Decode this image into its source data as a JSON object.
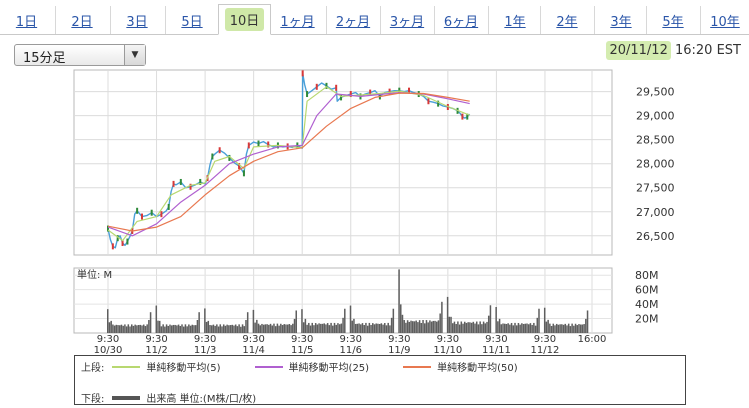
{
  "tabs": [
    {
      "label": "1日",
      "active": false
    },
    {
      "label": "2日",
      "active": false
    },
    {
      "label": "3日",
      "active": false
    },
    {
      "label": "5日",
      "active": false
    },
    {
      "label": "10日",
      "active": true
    },
    {
      "label": "1ヶ月",
      "active": false
    },
    {
      "label": "2ヶ月",
      "active": false
    },
    {
      "label": "3ヶ月",
      "active": false
    },
    {
      "label": "6ヶ月",
      "active": false
    },
    {
      "label": "1年",
      "active": false
    },
    {
      "label": "2年",
      "active": false
    },
    {
      "label": "3年",
      "active": false
    },
    {
      "label": "5年",
      "active": false
    },
    {
      "label": "10年",
      "active": false
    }
  ],
  "interval": {
    "selected": "15分足"
  },
  "timestamp": {
    "date": "20/11/12",
    "time": "16:20 EST"
  },
  "legend": {
    "upper_label": "上段:",
    "lower_label": "下段:",
    "items": [
      {
        "label": "単純移動平均(5)",
        "color": "#b8d870"
      },
      {
        "label": "単純移動平均(25)",
        "color": "#b060d0"
      },
      {
        "label": "単純移動平均(50)",
        "color": "#e87850"
      }
    ],
    "volume_label": "出来高 単位:(M株/口/枚)",
    "volume_color": "#555555"
  },
  "chart_data": [
    {
      "type": "line",
      "x_labels": [
        "9:30\n10/30",
        "9:30\n11/2",
        "9:30\n11/3",
        "9:30\n11/4",
        "9:30\n11/5",
        "9:30\n11/6",
        "9:30\n11/9",
        "9:30\n11/10",
        "9:30\n11/11",
        "9:30\n11/12",
        "16:00"
      ],
      "ylim": [
        26100,
        29950
      ],
      "yticks": [
        26500,
        27000,
        27500,
        28000,
        28500,
        29000,
        29500
      ],
      "ytick_labels": [
        "26,500",
        "27,000",
        "27,500",
        "28,000",
        "28,500",
        "29,000",
        "29,500"
      ],
      "grid": true,
      "series": [
        {
          "name": "price",
          "color": "#4a9fd8",
          "points": [
            [
              0.0,
              26650
            ],
            [
              0.05,
              26420
            ],
            [
              0.1,
              26280
            ],
            [
              0.15,
              26250
            ],
            [
              0.2,
              26450
            ],
            [
              0.25,
              26500
            ],
            [
              0.3,
              26350
            ],
            [
              0.35,
              26300
            ],
            [
              0.4,
              26380
            ],
            [
              0.45,
              26480
            ],
            [
              0.5,
              26600
            ],
            [
              0.55,
              26950
            ],
            [
              0.6,
              27020
            ],
            [
              0.65,
              26960
            ],
            [
              0.7,
              26900
            ],
            [
              0.8,
              26920
            ],
            [
              0.9,
              26980
            ],
            [
              1.0,
              26900
            ],
            [
              1.1,
              26950
            ],
            [
              1.2,
              27020
            ],
            [
              1.25,
              27100
            ],
            [
              1.3,
              27420
            ],
            [
              1.35,
              27580
            ],
            [
              1.4,
              27560
            ],
            [
              1.5,
              27620
            ],
            [
              1.6,
              27500
            ],
            [
              1.7,
              27520
            ],
            [
              1.8,
              27560
            ],
            [
              1.9,
              27620
            ],
            [
              2.0,
              27580
            ],
            [
              2.05,
              27700
            ],
            [
              2.1,
              27980
            ],
            [
              2.15,
              28150
            ],
            [
              2.2,
              28200
            ],
            [
              2.3,
              28280
            ],
            [
              2.4,
              28220
            ],
            [
              2.5,
              28120
            ],
            [
              2.6,
              28020
            ],
            [
              2.7,
              27950
            ],
            [
              2.75,
              27880
            ],
            [
              2.8,
              27800
            ],
            [
              2.85,
              28200
            ],
            [
              2.9,
              28380
            ],
            [
              3.0,
              28450
            ],
            [
              3.1,
              28420
            ],
            [
              3.2,
              28460
            ],
            [
              3.3,
              28400
            ],
            [
              3.4,
              28350
            ],
            [
              3.5,
              28380
            ],
            [
              3.6,
              28350
            ],
            [
              3.7,
              28360
            ],
            [
              3.8,
              28340
            ],
            [
              3.9,
              28380
            ],
            [
              4.0,
              28320
            ],
            [
              4.01,
              29880
            ],
            [
              4.05,
              29650
            ],
            [
              4.1,
              29450
            ],
            [
              4.2,
              29520
            ],
            [
              4.3,
              29600
            ],
            [
              4.4,
              29680
            ],
            [
              4.5,
              29620
            ],
            [
              4.6,
              29550
            ],
            [
              4.7,
              29580
            ],
            [
              4.72,
              29300
            ],
            [
              4.8,
              29380
            ],
            [
              4.9,
              29420
            ],
            [
              5.0,
              29450
            ],
            [
              5.1,
              29480
            ],
            [
              5.2,
              29400
            ],
            [
              5.3,
              29450
            ],
            [
              5.4,
              29480
            ],
            [
              5.5,
              29520
            ],
            [
              5.6,
              29400
            ],
            [
              5.7,
              29480
            ],
            [
              5.8,
              29500
            ],
            [
              5.9,
              29520
            ],
            [
              6.0,
              29520
            ],
            [
              6.1,
              29500
            ],
            [
              6.2,
              29520
            ],
            [
              6.3,
              29480
            ],
            [
              6.4,
              29450
            ],
            [
              6.5,
              29400
            ],
            [
              6.6,
              29300
            ],
            [
              6.7,
              29280
            ],
            [
              6.8,
              29250
            ],
            [
              6.9,
              29200
            ],
            [
              7.0,
              29180
            ],
            [
              7.1,
              29150
            ],
            [
              7.2,
              29100
            ],
            [
              7.25,
              29050
            ],
            [
              7.3,
              28980
            ],
            [
              7.35,
              28950
            ],
            [
              7.4,
              28980
            ],
            [
              7.45,
              29030
            ]
          ]
        },
        {
          "name": "単純移動平均(5)",
          "color": "#b8d870",
          "points": [
            [
              0.0,
              26620
            ],
            [
              0.3,
              26400
            ],
            [
              0.6,
              26800
            ],
            [
              1.0,
              26900
            ],
            [
              1.3,
              27350
            ],
            [
              1.7,
              27550
            ],
            [
              2.0,
              27600
            ],
            [
              2.2,
              28050
            ],
            [
              2.5,
              28150
            ],
            [
              2.8,
              27900
            ],
            [
              3.0,
              28350
            ],
            [
              3.5,
              28380
            ],
            [
              4.0,
              28330
            ],
            [
              4.1,
              29300
            ],
            [
              4.5,
              29600
            ],
            [
              4.8,
              29400
            ],
            [
              5.2,
              29430
            ],
            [
              5.6,
              29460
            ],
            [
              6.0,
              29510
            ],
            [
              6.5,
              29420
            ],
            [
              7.0,
              29190
            ],
            [
              7.45,
              29010
            ]
          ]
        },
        {
          "name": "単純移動平均(25)",
          "color": "#b060d0",
          "points": [
            [
              0.0,
              26680
            ],
            [
              0.5,
              26500
            ],
            [
              1.0,
              26750
            ],
            [
              1.5,
              27200
            ],
            [
              2.0,
              27550
            ],
            [
              2.5,
              28000
            ],
            [
              3.0,
              28200
            ],
            [
              3.5,
              28350
            ],
            [
              4.0,
              28380
            ],
            [
              4.3,
              29000
            ],
            [
              4.7,
              29450
            ],
            [
              5.2,
              29400
            ],
            [
              5.6,
              29440
            ],
            [
              6.0,
              29480
            ],
            [
              6.5,
              29450
            ],
            [
              7.0,
              29350
            ],
            [
              7.45,
              29250
            ]
          ]
        },
        {
          "name": "単純移動平均(50)",
          "color": "#e87850",
          "points": [
            [
              0.0,
              26700
            ],
            [
              0.5,
              26600
            ],
            [
              1.0,
              26680
            ],
            [
              1.5,
              26900
            ],
            [
              2.0,
              27350
            ],
            [
              2.5,
              27750
            ],
            [
              3.0,
              28050
            ],
            [
              3.5,
              28250
            ],
            [
              4.0,
              28330
            ],
            [
              4.5,
              28780
            ],
            [
              5.0,
              29150
            ],
            [
              5.5,
              29380
            ],
            [
              6.0,
              29470
            ],
            [
              6.5,
              29460
            ],
            [
              7.0,
              29380
            ],
            [
              7.45,
              29300
            ]
          ]
        }
      ]
    },
    {
      "type": "bar",
      "name": "volume",
      "unit_label": "単位: M",
      "ylim": [
        0,
        90
      ],
      "yticks": [
        20,
        40,
        60,
        80
      ],
      "ytick_labels": [
        "20M",
        "40M",
        "60M",
        "80M"
      ],
      "sessions": [
        {
          "spike": 33,
          "base": 12
        },
        {
          "spike": 38,
          "base": 12
        },
        {
          "spike": 34,
          "base": 12
        },
        {
          "spike": 32,
          "base": 13
        },
        {
          "spike": 33,
          "base": 14
        },
        {
          "spike": 38,
          "base": 14
        },
        {
          "spike": 88,
          "base": 18
        },
        {
          "spike": 50,
          "base": 16
        },
        {
          "spike": 36,
          "base": 14
        },
        {
          "spike": 35,
          "base": 13
        }
      ]
    }
  ]
}
